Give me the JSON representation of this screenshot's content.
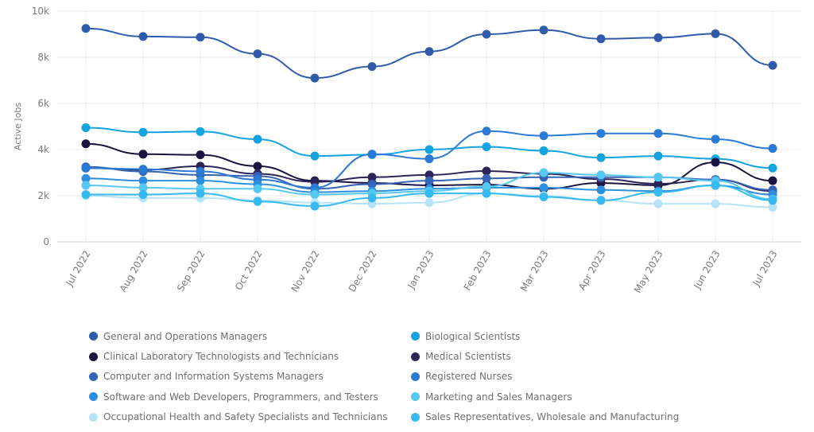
{
  "chart_data": {
    "type": "line",
    "title": "",
    "xlabel": "",
    "ylabel": "Active Jobs",
    "ylim": [
      0,
      10000
    ],
    "yticks": [
      0,
      2000,
      4000,
      6000,
      8000,
      10000
    ],
    "ytick_labels": [
      "0",
      "2k",
      "4k",
      "6k",
      "8k",
      "10k"
    ],
    "grid": true,
    "legend_position": "bottom",
    "x": [
      "Jul 2022",
      "Aug 2022",
      "Sep 2022",
      "Oct 2022",
      "Nov 2022",
      "Dec 2022",
      "Jan 2023",
      "Feb 2023",
      "Mar 2023",
      "Apr 2023",
      "May 2023",
      "Jun 2023",
      "Jul 2023"
    ],
    "series": [
      {
        "name": "General and Operations Managers",
        "color": "#2f5ca8",
        "values": [
          9250,
          8900,
          8870,
          8150,
          7100,
          7600,
          8250,
          9000,
          9180,
          8800,
          8850,
          9020,
          7650
        ]
      },
      {
        "name": "Biological Scientists",
        "color": "#12a3e0",
        "values": [
          4950,
          4750,
          4780,
          4450,
          3720,
          3780,
          4000,
          4120,
          3950,
          3650,
          3720,
          3600,
          3200
        ]
      },
      {
        "name": "Clinical Laboratory Technologists and Technicians",
        "color": "#1b1440",
        "values": [
          4250,
          3800,
          3770,
          3280,
          2650,
          2550,
          2450,
          2480,
          2300,
          2550,
          2450,
          3450,
          2650
        ]
      },
      {
        "name": "Medical Scientists",
        "color": "#2e2557",
        "values": [
          3200,
          3120,
          3280,
          2950,
          2600,
          2800,
          2900,
          3070,
          2950,
          2720,
          2520,
          2700,
          2200
        ]
      },
      {
        "name": "Computer and Information Systems Managers",
        "color": "#3563b5",
        "values": [
          3250,
          3050,
          2900,
          2850,
          2300,
          2500,
          2650,
          2750,
          2800,
          2800,
          2800,
          2700,
          2250
        ]
      },
      {
        "name": "Registered Nurses",
        "color": "#2b7ad6",
        "values": [
          3200,
          3150,
          3050,
          2700,
          2350,
          3800,
          3600,
          4800,
          4600,
          4700,
          4700,
          4450,
          4050
        ]
      },
      {
        "name": "Software and Web Developers, Programmers, and Testers",
        "color": "#2e8fe0",
        "values": [
          2750,
          2650,
          2650,
          2500,
          2150,
          2200,
          2300,
          2350,
          2350,
          2250,
          2200,
          2450,
          2050
        ]
      },
      {
        "name": "Marketing and Sales Managers",
        "color": "#56c8f0",
        "values": [
          2450,
          2350,
          2300,
          2300,
          2050,
          2100,
          2200,
          2400,
          3000,
          2900,
          2800,
          2650,
          1850
        ]
      },
      {
        "name": "Occupational Health and Safety Specialists and Technicians",
        "color": "#b5e3f7",
        "values": [
          2000,
          1900,
          1900,
          1800,
          1700,
          1650,
          1700,
          2100,
          2000,
          1800,
          1650,
          1650,
          1500
        ]
      },
      {
        "name": "Sales Representatives, Wholesale and Manufacturing",
        "color": "#35b9ee",
        "values": [
          2050,
          2050,
          2100,
          1750,
          1550,
          1900,
          2100,
          2100,
          1950,
          1800,
          2150,
          2450,
          1800
        ]
      }
    ],
    "legend_order": [
      0,
      1,
      2,
      3,
      4,
      5,
      6,
      7,
      8,
      9
    ]
  }
}
